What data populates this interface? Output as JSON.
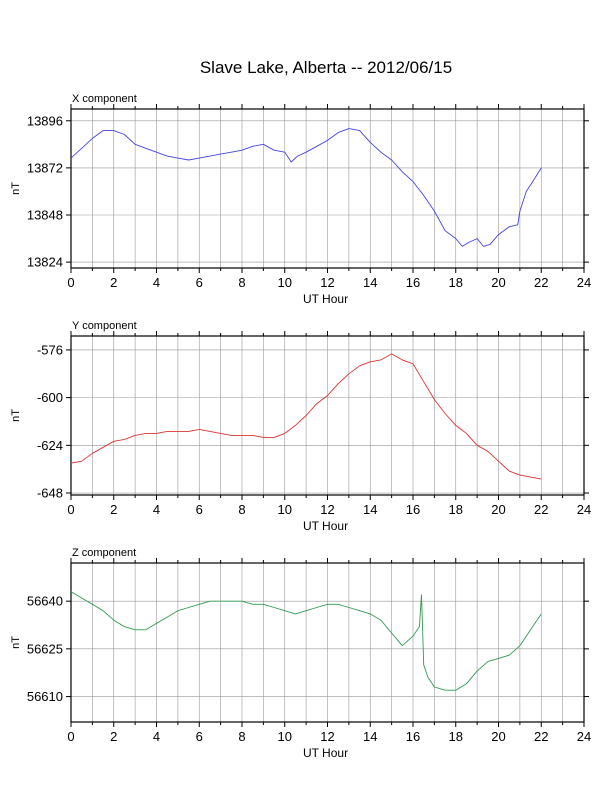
{
  "title": "Slave Lake, Alberta -- 2012/06/15",
  "chart_data": [
    {
      "type": "line",
      "panel_label": "X component",
      "xlabel": "UT Hour",
      "ylabel": "nT",
      "xlim": [
        0,
        24
      ],
      "ylim": [
        13821,
        13902
      ],
      "xticks": [
        0,
        2,
        4,
        6,
        8,
        10,
        12,
        14,
        16,
        18,
        20,
        22,
        24
      ],
      "yticks": [
        13824,
        13848,
        13872,
        13896
      ],
      "grid": true,
      "color": "#4444dd",
      "series": [
        {
          "x": [
            0,
            0.5,
            1,
            1.5,
            2,
            2.5,
            3,
            3.5,
            4,
            4.5,
            5,
            5.5,
            6,
            6.5,
            7,
            7.5,
            8,
            8.5,
            9,
            9.5,
            10,
            10.3,
            10.6,
            11,
            11.5,
            12,
            12.5,
            13,
            13.5,
            14,
            14.5,
            15,
            15.5,
            16,
            16.5,
            17,
            17.5,
            18,
            18.3,
            18.6,
            19,
            19.3,
            19.6,
            20,
            20.5,
            20.9,
            21,
            21.3,
            21.6,
            22
          ],
          "y": [
            13877,
            13882,
            13887,
            13891,
            13891,
            13889,
            13884,
            13882,
            13880,
            13878,
            13877,
            13876,
            13877,
            13878,
            13879,
            13880,
            13881,
            13883,
            13884,
            13881,
            13880,
            13875,
            13878,
            13880,
            13883,
            13886,
            13890,
            13892,
            13891,
            13885,
            13880,
            13876,
            13870,
            13865,
            13858,
            13850,
            13840,
            13836,
            13832,
            13834,
            13836,
            13832,
            13833,
            13838,
            13842,
            13843,
            13850,
            13860,
            13865,
            13872
          ]
        }
      ]
    },
    {
      "type": "line",
      "panel_label": "Y component",
      "xlabel": "UT Hour",
      "ylabel": "nT",
      "xlim": [
        0,
        24
      ],
      "ylim": [
        -649,
        -569
      ],
      "xticks": [
        0,
        2,
        4,
        6,
        8,
        10,
        12,
        14,
        16,
        18,
        20,
        22,
        24
      ],
      "yticks": [
        -576,
        -600,
        -624,
        -648
      ],
      "grid": true,
      "color": "#dd3333",
      "series": [
        {
          "x": [
            0,
            0.5,
            1,
            1.5,
            2,
            2.5,
            3,
            3.5,
            4,
            4.5,
            5,
            5.5,
            6,
            6.5,
            7,
            7.5,
            8,
            8.5,
            9,
            9.5,
            10,
            10.5,
            11,
            11.5,
            12,
            12.5,
            13,
            13.5,
            14,
            14.5,
            15,
            15.5,
            16,
            16.5,
            17,
            17.5,
            18,
            18.5,
            19,
            19.5,
            20,
            20.5,
            21,
            21.5,
            22
          ],
          "y": [
            -633,
            -632,
            -628,
            -625,
            -622,
            -621,
            -619,
            -618,
            -618,
            -617,
            -617,
            -617,
            -616,
            -617,
            -618,
            -619,
            -619,
            -619,
            -620,
            -620,
            -618,
            -614,
            -609,
            -603,
            -599,
            -593,
            -588,
            -584,
            -582,
            -581,
            -578,
            -581,
            -583,
            -592,
            -601,
            -608,
            -614,
            -618,
            -624,
            -627,
            -632,
            -637,
            -639,
            -640,
            -641
          ]
        }
      ]
    },
    {
      "type": "line",
      "panel_label": "Z component",
      "xlabel": "UT Hour",
      "ylabel": "nT",
      "xlim": [
        0,
        24
      ],
      "ylim": [
        56602,
        56652
      ],
      "xticks": [
        0,
        2,
        4,
        6,
        8,
        10,
        12,
        14,
        16,
        18,
        20,
        22,
        24
      ],
      "yticks": [
        56610,
        56625,
        56640
      ],
      "grid": true,
      "color": "#339955",
      "series": [
        {
          "x": [
            0,
            0.5,
            1,
            1.5,
            2,
            2.5,
            3,
            3.5,
            4,
            4.5,
            5,
            5.5,
            6,
            6.5,
            7,
            7.5,
            8,
            8.5,
            9,
            9.5,
            10,
            10.5,
            11,
            11.5,
            12,
            12.5,
            13,
            13.5,
            14,
            14.5,
            15,
            15.5,
            16,
            16.3,
            16.4,
            16.5,
            16.7,
            17,
            17.5,
            18,
            18.5,
            19,
            19.5,
            20,
            20.5,
            21,
            21.5,
            22
          ],
          "y": [
            56643,
            56641,
            56639,
            56637,
            56634,
            56632,
            56631,
            56631,
            56633,
            56635,
            56637,
            56638,
            56639,
            56640,
            56640,
            56640,
            56640,
            56639,
            56639,
            56638,
            56637,
            56636,
            56637,
            56638,
            56639,
            56639,
            56638,
            56637,
            56636,
            56634,
            56630,
            56626,
            56629,
            56632,
            56642,
            56620,
            56616,
            56613,
            56612,
            56612,
            56614,
            56618,
            56621,
            56622,
            56623,
            56626,
            56631,
            56636
          ]
        }
      ]
    }
  ]
}
